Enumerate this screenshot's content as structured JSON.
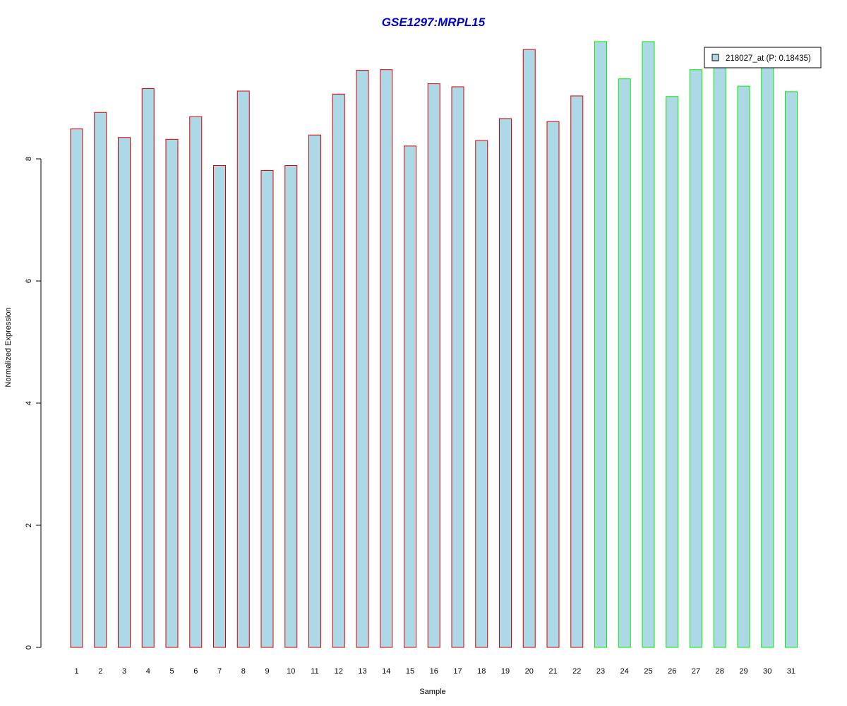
{
  "chart_data": {
    "type": "bar",
    "title": "GSE1297:MRPL15",
    "xlabel": "Sample",
    "ylabel": "Normalized Expression",
    "ylim": [
      0,
      10
    ],
    "y_ticks": [
      0,
      2,
      4,
      6,
      8
    ],
    "grid": false,
    "legend_position": "top-right",
    "categories": [
      "1",
      "2",
      "3",
      "4",
      "5",
      "6",
      "7",
      "8",
      "9",
      "10",
      "11",
      "12",
      "13",
      "14",
      "15",
      "16",
      "17",
      "18",
      "19",
      "20",
      "21",
      "22",
      "23",
      "24",
      "25",
      "26",
      "27",
      "28",
      "29",
      "30",
      "31"
    ],
    "series": [
      {
        "name": "218027_at (P: 0.18435)",
        "values": [
          8.49,
          8.76,
          8.35,
          9.15,
          8.32,
          8.69,
          7.89,
          9.11,
          7.81,
          7.89,
          8.39,
          9.06,
          9.45,
          9.46,
          8.21,
          9.23,
          9.18,
          8.3,
          8.66,
          9.79,
          8.61,
          9.03,
          9.92,
          9.31,
          9.92,
          9.02,
          9.46,
          9.62,
          9.19,
          9.6,
          9.1
        ]
      }
    ],
    "groups": [
      {
        "samples": [
          "1",
          "2",
          "3",
          "4",
          "5",
          "6",
          "7",
          "8",
          "9",
          "10",
          "11",
          "12",
          "13",
          "14",
          "15",
          "16",
          "17",
          "18",
          "19",
          "20",
          "21",
          "22"
        ],
        "border_color": "#dd0000"
      },
      {
        "samples": [
          "23",
          "24",
          "25",
          "26",
          "27",
          "28",
          "29",
          "30",
          "31"
        ],
        "border_color": "#00ee00"
      }
    ],
    "colors": {
      "bar_fill": "#add8e6",
      "title": "#0000cc",
      "axis": "#000000"
    }
  }
}
